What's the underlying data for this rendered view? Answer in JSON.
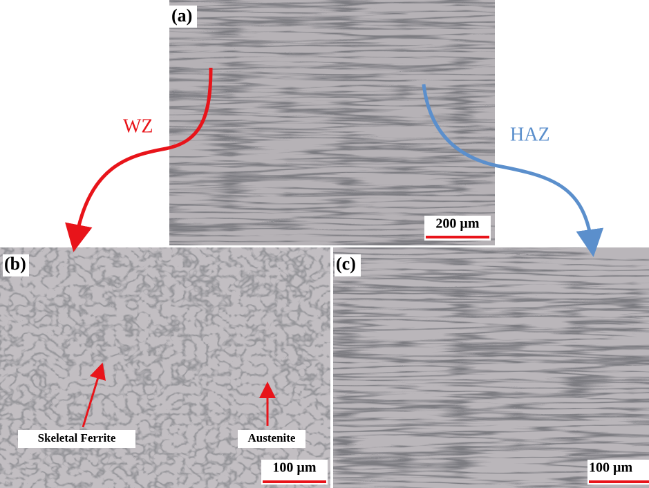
{
  "panels": [
    {
      "label": "(a)",
      "scale_bar": "200 µm"
    },
    {
      "label": "(b)",
      "scale_bar": "100 µm",
      "annotations": [
        "Skeletal Ferrite",
        "Austenite"
      ]
    },
    {
      "label": "(c)",
      "scale_bar": "100 µm"
    }
  ],
  "zones": {
    "wz": "WZ",
    "haz": "HAZ"
  }
}
